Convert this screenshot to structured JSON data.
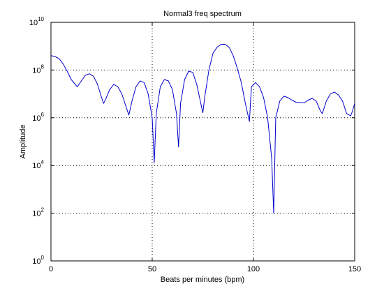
{
  "chart_data": {
    "type": "line",
    "title": "Normal3 freq spectrum",
    "xlabel": "Beats per minutes (bpm)",
    "ylabel": "Amplitude",
    "xlim": [
      0,
      150
    ],
    "ylim": [
      1,
      10000000000
    ],
    "yscale": "log",
    "grid": true,
    "x_ticks": [
      0,
      50,
      100,
      150
    ],
    "x_tick_labels": [
      "0",
      "50",
      "100",
      "150"
    ],
    "y_tick_exponents": [
      0,
      2,
      4,
      6,
      8,
      10
    ],
    "y_tick_base": "10",
    "line_color": "#0000cc",
    "series": [
      {
        "x": [
          0,
          2,
          4,
          6,
          8,
          10,
          12,
          13,
          15,
          17,
          19,
          21,
          23,
          25,
          26,
          27,
          29,
          31,
          33,
          35,
          37,
          38.5,
          40,
          42,
          44,
          46,
          48,
          50,
          51,
          52,
          54,
          56,
          58,
          60,
          62,
          63,
          64,
          66,
          68,
          70,
          72,
          74,
          75,
          76,
          78,
          80,
          82,
          84,
          86,
          88,
          90,
          92,
          94,
          96,
          98,
          99,
          101,
          103,
          105,
          107,
          109,
          110,
          111,
          113,
          115,
          117,
          119,
          121,
          123,
          125,
          127,
          129,
          131,
          133,
          134,
          136,
          138,
          140,
          142,
          144,
          146,
          148,
          149,
          150
        ],
        "y": [
          400000000,
          370000000,
          300000000,
          180000000,
          90000000,
          40000000,
          25000000,
          20000000,
          35000000,
          60000000,
          70000000,
          55000000,
          25000000,
          7000000,
          4000000,
          6000000,
          15000000,
          25000000,
          20000000,
          10000000,
          3000000,
          1300000,
          5000000,
          20000000,
          35000000,
          30000000,
          10000000,
          1000000,
          13000,
          1500000,
          20000000,
          40000000,
          35000000,
          15000000,
          1500000,
          60000,
          4000000,
          40000000,
          90000000,
          80000000,
          25000000,
          4000000,
          1600000,
          8000000,
          100000000,
          500000000,
          900000000,
          1200000000,
          1200000000,
          900000000,
          400000000,
          120000000,
          30000000,
          4000000,
          700000,
          20000000,
          30000000,
          20000000,
          7000000,
          1000000,
          20000,
          100,
          1000000,
          5000000,
          8000000,
          7000000,
          5500000,
          4500000,
          4300000,
          4200000,
          5500000,
          6500000,
          5000000,
          2000000,
          1500000,
          5000000,
          10000000,
          12000000,
          9000000,
          5000000,
          1500000,
          1200000,
          2000000,
          4000000
        ]
      }
    ]
  }
}
